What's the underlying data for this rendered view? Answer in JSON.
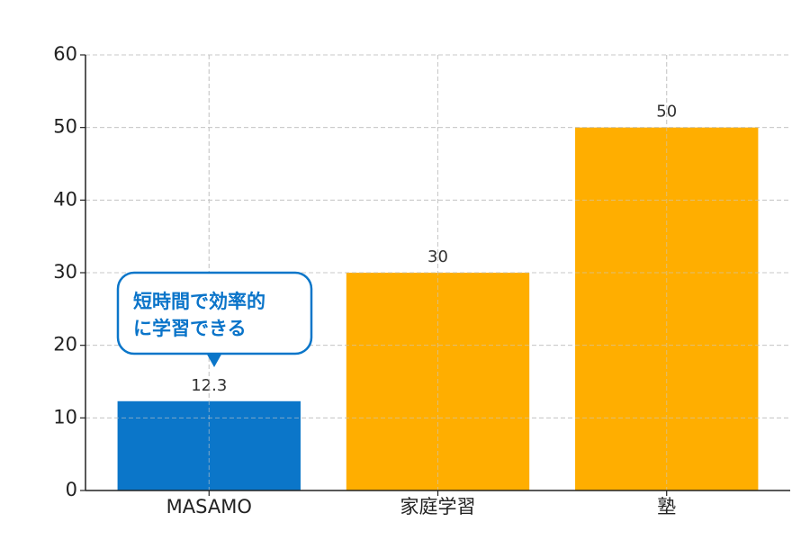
{
  "chart_data": {
    "type": "bar",
    "categories": [
      "MASAMO",
      "家庭学習",
      "塾"
    ],
    "values": [
      12.3,
      30,
      50
    ],
    "colors": [
      "#0b76c9",
      "#ffae00",
      "#ffae00"
    ],
    "ylim": [
      0,
      60
    ],
    "yticks": [
      0,
      10,
      20,
      30,
      40,
      50,
      60
    ],
    "grid": true,
    "annotation": {
      "lines": [
        "短時間で効率的",
        "に学習できる"
      ],
      "color": "#0b76c9"
    }
  }
}
